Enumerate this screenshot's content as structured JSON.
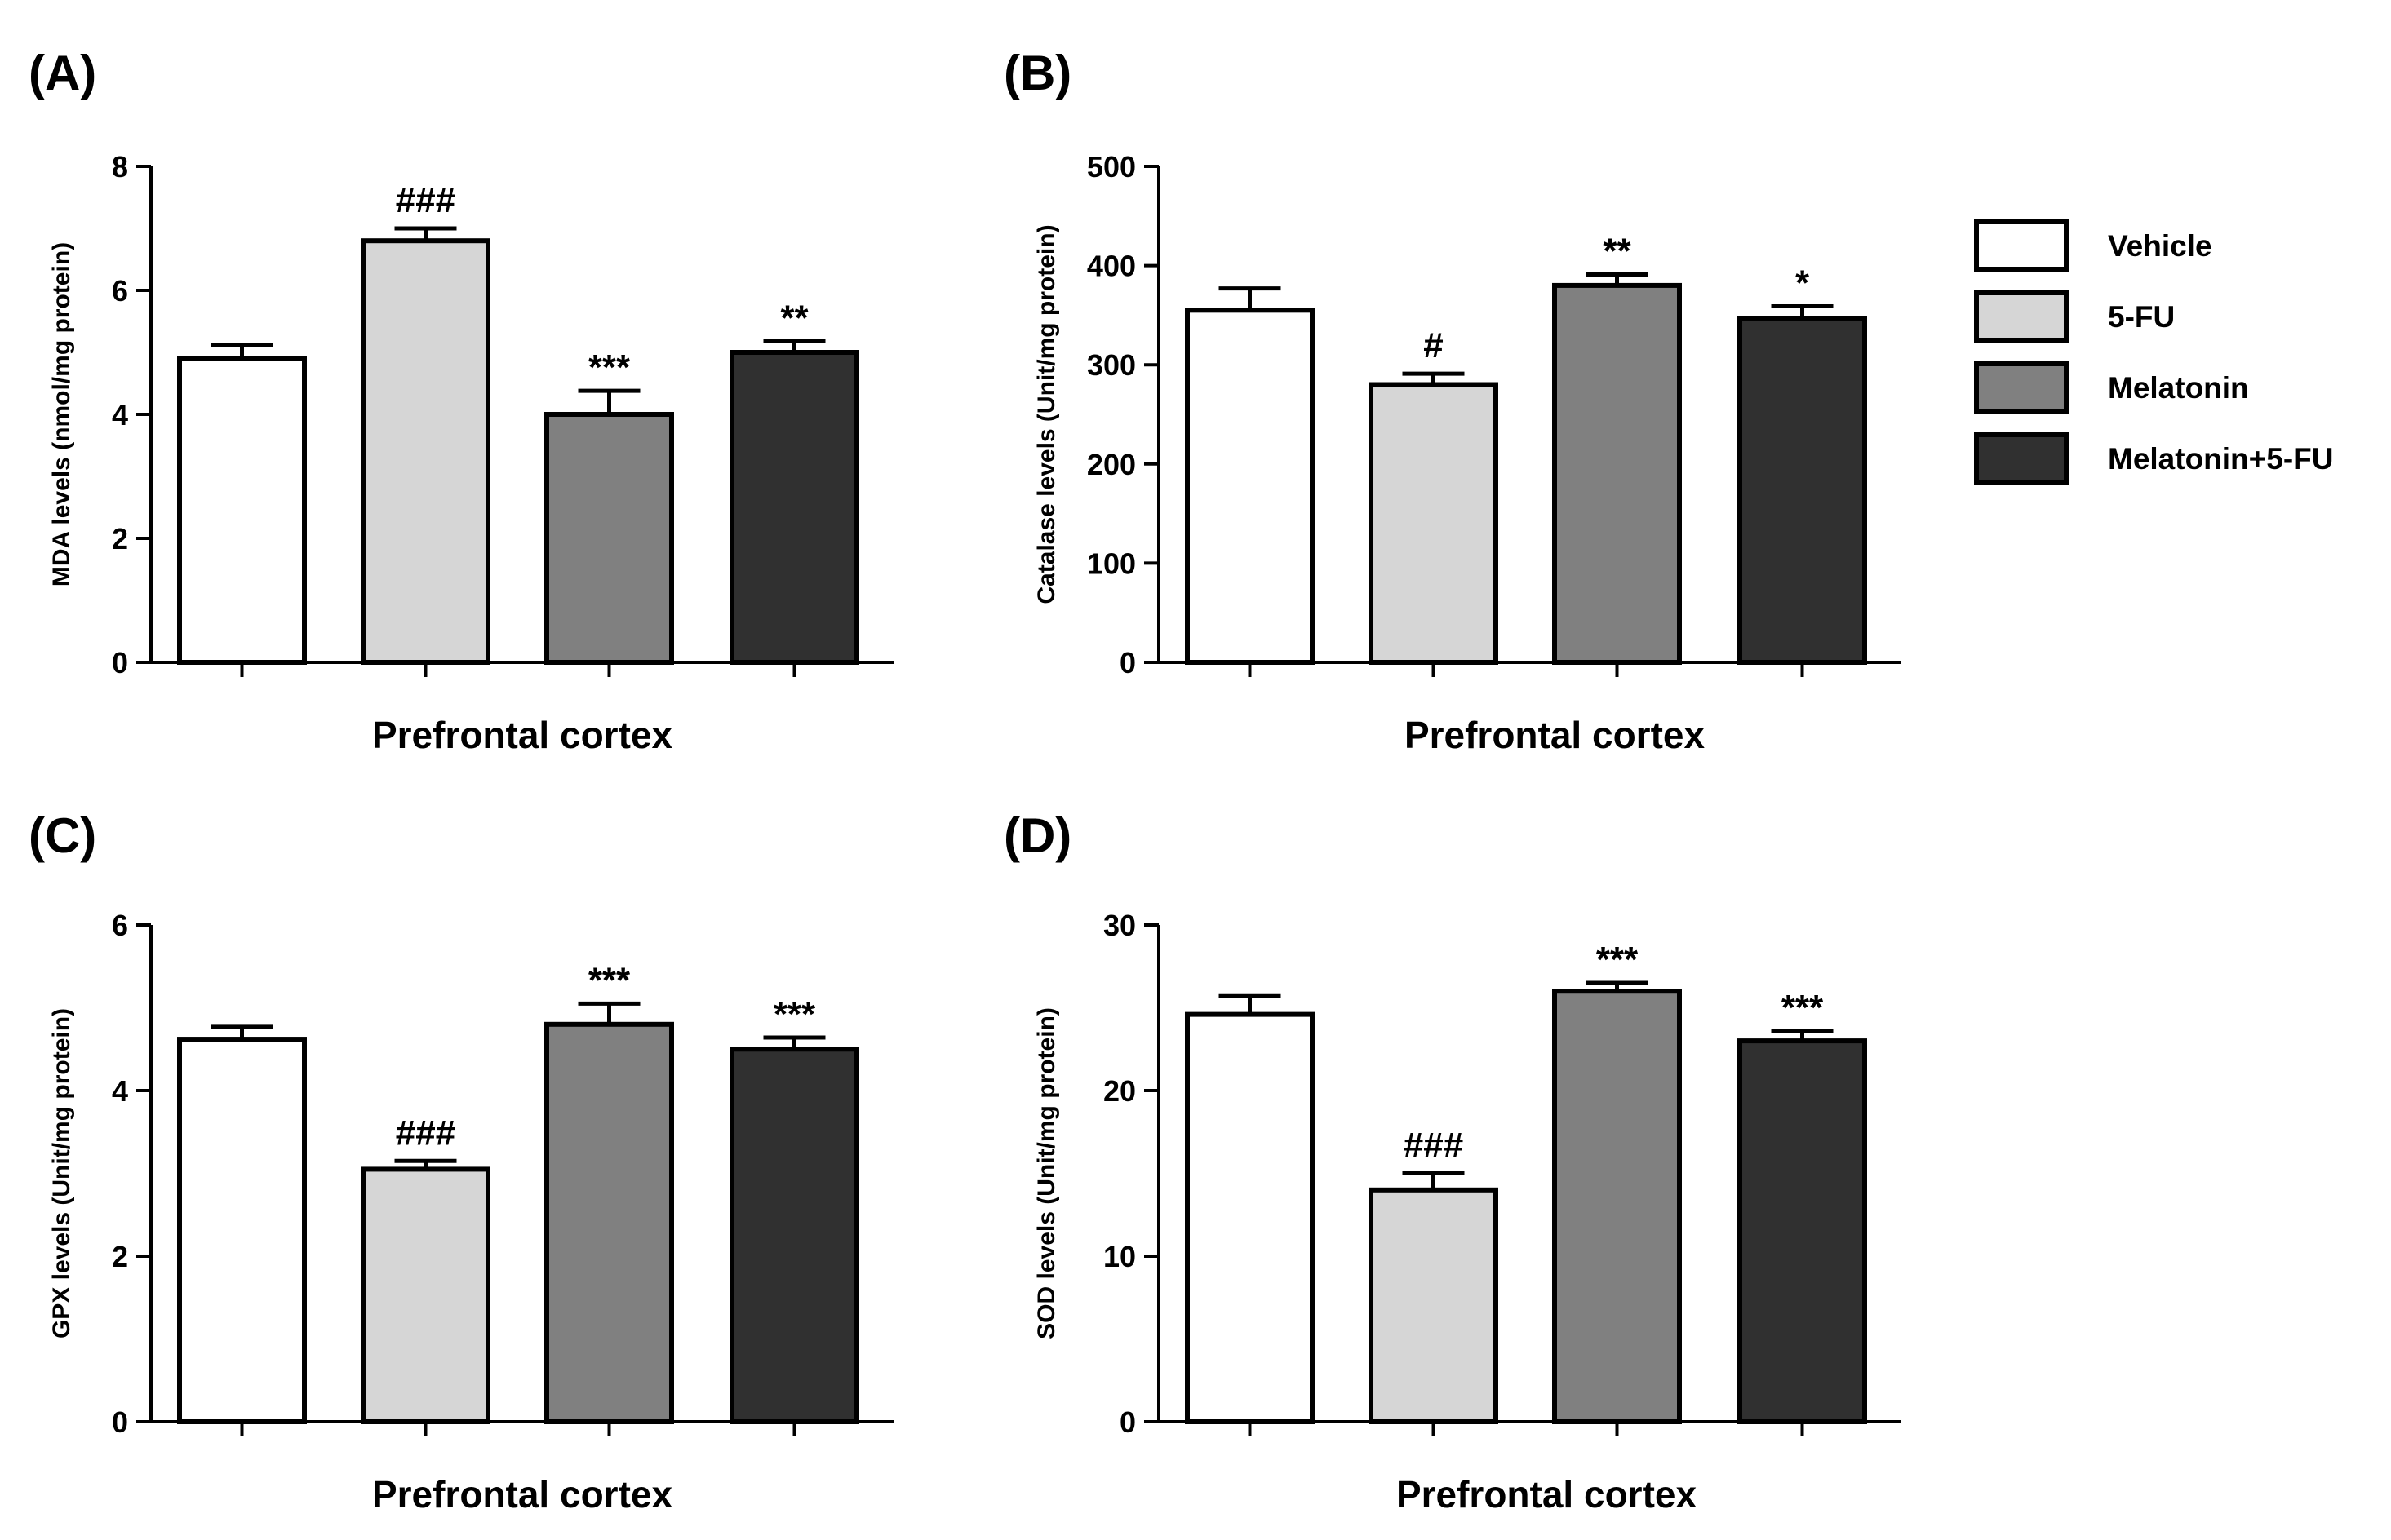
{
  "colors": {
    "Vehicle": "#ffffff",
    "5-FU": "#d6d6d6",
    "Melatonin": "#808080",
    "Melatonin+5-FU": "#303030"
  },
  "legend": [
    "Vehicle",
    "5-FU",
    "Melatonin",
    "Melatonin+5-FU"
  ],
  "chart_data": [
    {
      "panel": "(A)",
      "type": "bar",
      "categories": [
        "Vehicle",
        "5-FU",
        "Melatonin",
        "Melatonin+5-FU"
      ],
      "values": [
        4.9,
        6.8,
        4.0,
        5.0
      ],
      "errors": [
        0.22,
        0.2,
        0.38,
        0.18
      ],
      "annotations": [
        "",
        "###",
        "***",
        "**"
      ],
      "xlabel": "Prefrontal cortex",
      "ylabel": "MDA levels (nmol/mg protein)",
      "ylim": [
        0,
        8
      ],
      "yticks": [
        0,
        2,
        4,
        6,
        8
      ],
      "grid": false
    },
    {
      "panel": "(B)",
      "type": "bar",
      "categories": [
        "Vehicle",
        "5-FU",
        "Melatonin",
        "Melatonin+5-FU"
      ],
      "values": [
        355,
        280,
        380,
        347
      ],
      "errors": [
        22,
        11,
        11,
        12
      ],
      "annotations": [
        "",
        "#",
        "**",
        "*"
      ],
      "xlabel": "Prefrontal cortex",
      "ylabel": "Catalase levels (Unit/mg protein)",
      "ylim": [
        0,
        500
      ],
      "yticks": [
        0,
        100,
        200,
        300,
        400,
        500
      ],
      "grid": false
    },
    {
      "panel": "(C)",
      "type": "bar",
      "categories": [
        "Vehicle",
        "5-FU",
        "Melatonin",
        "Melatonin+5-FU"
      ],
      "values": [
        4.62,
        3.05,
        4.8,
        4.5
      ],
      "errors": [
        0.15,
        0.1,
        0.25,
        0.14
      ],
      "annotations": [
        "",
        "###",
        "***",
        "***"
      ],
      "xlabel": "Prefrontal cortex",
      "ylabel": "GPX levels (Unit/mg protein)",
      "ylim": [
        0,
        6
      ],
      "yticks": [
        0,
        2,
        4,
        6
      ],
      "grid": false
    },
    {
      "panel": "(D)",
      "type": "bar",
      "categories": [
        "Vehicle",
        "5-FU",
        "Melatonin",
        "Melatonin+5-FU"
      ],
      "values": [
        24.6,
        14.0,
        26.0,
        23.0
      ],
      "errors": [
        1.1,
        1.0,
        0.5,
        0.6
      ],
      "annotations": [
        "",
        "###",
        "***",
        "***"
      ],
      "xlabel": "Prefrontal cortex",
      "ylabel": "SOD levels (Unit/mg protein)",
      "ylim": [
        0,
        30
      ],
      "yticks": [
        0,
        10,
        20,
        30
      ],
      "grid": false
    }
  ]
}
